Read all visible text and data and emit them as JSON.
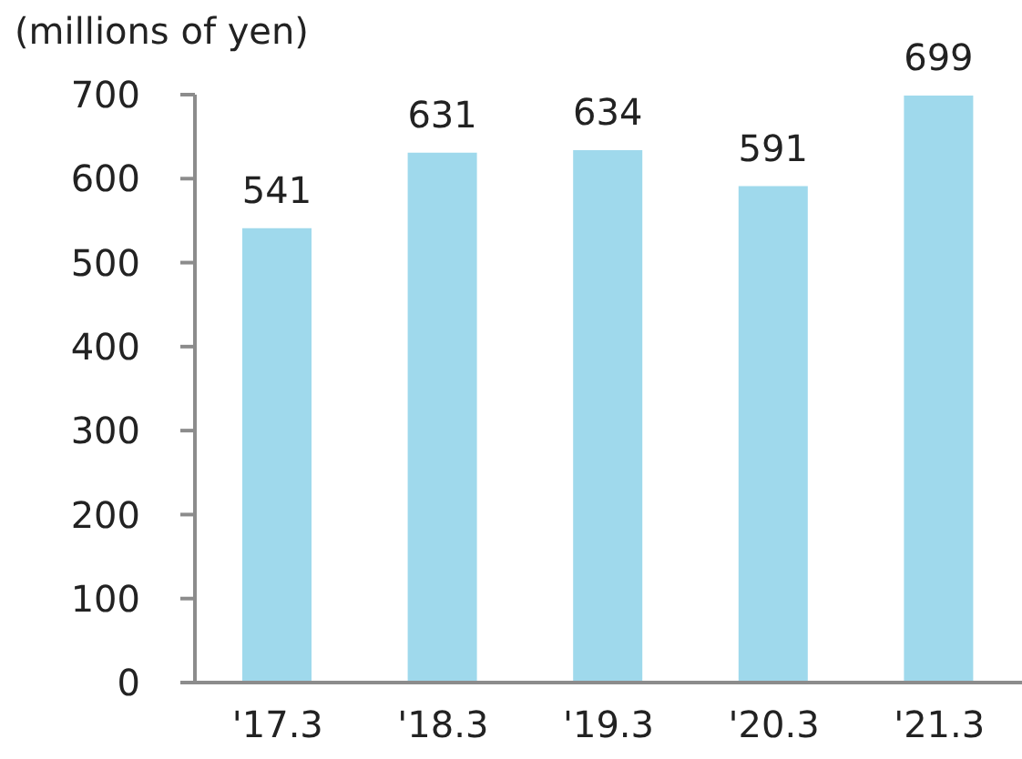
{
  "chart_data": {
    "type": "bar",
    "ylabel": "(millions of yen)",
    "categories": [
      "'17.3",
      "'18.3",
      "'19.3",
      "'20.3",
      "'21.3"
    ],
    "values": [
      541,
      631,
      634,
      591,
      699
    ],
    "color": "#9fd9ec",
    "ylim": [
      0,
      700
    ],
    "yticks": [
      0,
      100,
      200,
      300,
      400,
      500,
      600,
      700
    ],
    "data_labels": true
  }
}
